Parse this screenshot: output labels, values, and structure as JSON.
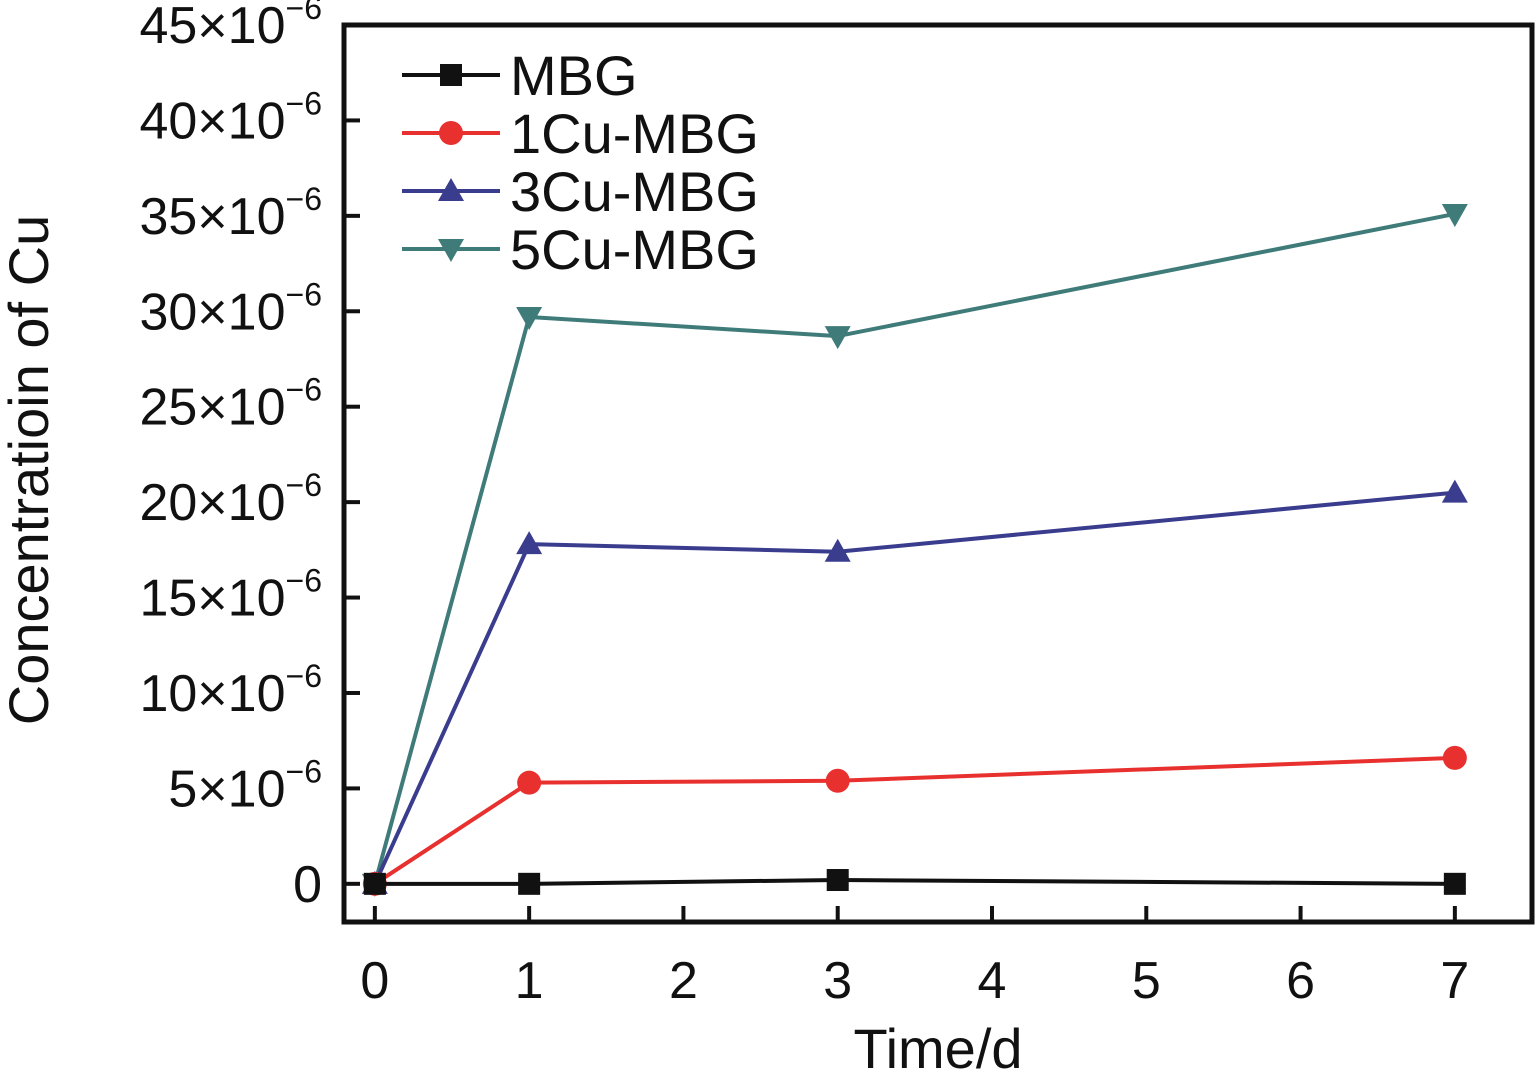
{
  "chart_data": {
    "type": "line",
    "title": "",
    "xlabel": "Time/d",
    "ylabel": "Concentratioin of Cu",
    "xlim": [
      -0.2,
      7.5
    ],
    "ylim": [
      -2e-06,
      4.5e-05
    ],
    "x_ticks": [
      0,
      1,
      2,
      3,
      4,
      5,
      6,
      7
    ],
    "x_tick_labels": [
      "0",
      "1",
      "2",
      "3",
      "4",
      "5",
      "6",
      "7"
    ],
    "y_ticks": [
      0,
      5e-06,
      1e-05,
      1.5e-05,
      2e-05,
      2.5e-05,
      3e-05,
      3.5e-05,
      4e-05,
      4.5e-05
    ],
    "y_tick_labels": [
      {
        "base": "0",
        "exp": ""
      },
      {
        "base": "5×10",
        "exp": "−6"
      },
      {
        "base": "10×10",
        "exp": "−6"
      },
      {
        "base": "15×10",
        "exp": "−6"
      },
      {
        "base": "20×10",
        "exp": "−6"
      },
      {
        "base": "25×10",
        "exp": "−6"
      },
      {
        "base": "30×10",
        "exp": "−6"
      },
      {
        "base": "35×10",
        "exp": "−6"
      },
      {
        "base": "40×10",
        "exp": "−6"
      },
      {
        "base": "45×10",
        "exp": "−6"
      }
    ],
    "grid": false,
    "legend_position": "top-left",
    "x": [
      0,
      1,
      3,
      7
    ],
    "series": [
      {
        "name": "MBG",
        "values": [
          0,
          0,
          2e-07,
          0
        ],
        "color": "#111111",
        "marker": "square"
      },
      {
        "name": "1Cu-MBG",
        "values": [
          0,
          5.3e-06,
          5.4e-06,
          6.6e-06
        ],
        "color": "#e8302e",
        "marker": "circle"
      },
      {
        "name": "3Cu-MBG",
        "values": [
          0,
          1.78e-05,
          1.74e-05,
          2.05e-05
        ],
        "color": "#3a3c8e",
        "marker": "triangle-up"
      },
      {
        "name": "5Cu-MBG",
        "values": [
          0,
          2.97e-05,
          2.87e-05,
          3.51e-05
        ],
        "color": "#3f7b79",
        "marker": "triangle-down"
      }
    ]
  }
}
